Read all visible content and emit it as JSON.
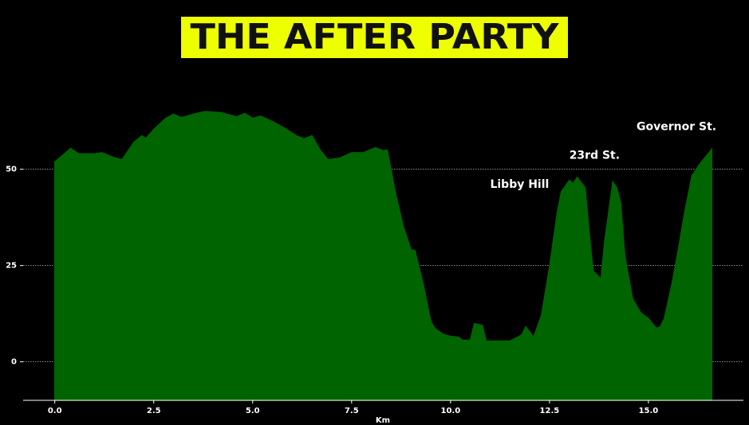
{
  "chart_data": {
    "type": "area",
    "title": "THE AFTER PARTY",
    "xlabel": "Km",
    "x": [
      0,
      0.4,
      0.6,
      1.0,
      1.2,
      1.5,
      1.7,
      2.0,
      2.2,
      2.3,
      2.5,
      2.8,
      3.0,
      3.2,
      3.5,
      3.8,
      4.2,
      4.6,
      4.8,
      5.0,
      5.2,
      5.5,
      5.8,
      6.1,
      6.3,
      6.5,
      6.7,
      6.9,
      7.2,
      7.5,
      7.8,
      8.1,
      8.3,
      8.4,
      8.6,
      8.8,
      9.0,
      9.1,
      9.3,
      9.5,
      9.6,
      9.8,
      10.0,
      10.2,
      10.3,
      10.5,
      10.6,
      10.8,
      10.9,
      11.2,
      11.5,
      11.8,
      11.9,
      12.1,
      12.3,
      12.5,
      12.7,
      12.8,
      13.0,
      13.1,
      13.2,
      13.4,
      13.5,
      13.6,
      13.8,
      13.9,
      14.1,
      14.2,
      14.3,
      14.4,
      14.6,
      14.8,
      15.0,
      15.2,
      15.3,
      15.4,
      15.6,
      15.8,
      15.9,
      16.1,
      16.3,
      16.5,
      16.6
    ],
    "values": [
      51.9,
      55.4,
      54,
      54,
      54.3,
      53,
      52.5,
      57,
      58.7,
      58,
      60.3,
      63.2,
      64.3,
      63.4,
      64.3,
      65,
      64.7,
      63.6,
      64.5,
      63.2,
      63.8,
      62.4,
      60.7,
      58.7,
      57.9,
      58.7,
      55,
      52.5,
      52.9,
      54.3,
      54.3,
      55.6,
      54.8,
      55,
      44.2,
      35.3,
      29.1,
      28.9,
      20.5,
      10.5,
      8.7,
      7.2,
      6.6,
      6.4,
      5.6,
      5.6,
      9.9,
      9.5,
      5.4,
      5.4,
      5.4,
      7.0,
      9.1,
      6.4,
      12.2,
      24.6,
      39,
      44.2,
      47.1,
      46.3,
      47.9,
      45.2,
      33.9,
      23.6,
      21.5,
      31.8,
      46.7,
      45.2,
      41.1,
      27.7,
      16.3,
      12.8,
      11.2,
      8.7,
      9.1,
      11.2,
      20.5,
      31.8,
      38,
      48.3,
      51.4,
      53.9,
      55.2
    ],
    "color": "#006400",
    "xlim": [
      -0.8,
      17.4
    ],
    "ylim": [
      -10,
      77
    ],
    "xticks": [
      {
        "value": 0,
        "label": "0.0"
      },
      2.5,
      {
        "value": 5,
        "label": "5.0"
      },
      7.5,
      {
        "value": 10,
        "label": "10.0"
      },
      12.5,
      {
        "value": 15,
        "label": "15.0"
      }
    ],
    "yticks": [
      0,
      25,
      50
    ],
    "grid": true,
    "annotations": [
      {
        "text": "Libby Hill",
        "x": 11.0,
        "y": 46
      },
      {
        "text": "23rd St.",
        "x": 13.0,
        "y": 53.5
      },
      {
        "text": "Governor St.",
        "x": 14.7,
        "y": 61
      }
    ]
  }
}
